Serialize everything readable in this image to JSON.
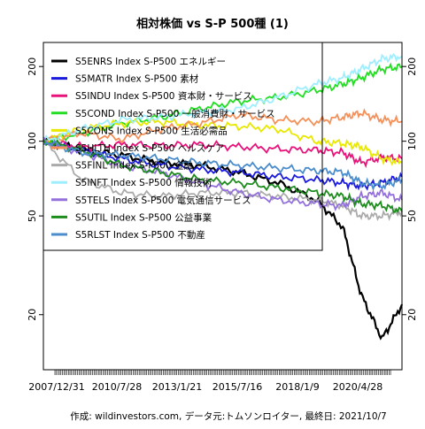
{
  "chart_data": {
    "type": "line",
    "title": "相対株価 vs S-P 500種 (1)",
    "footer": "作成: wildinvestors.com, データ元:トムソンロイター, 最終日: 2021/10/7",
    "x_tick_labels": [
      "2007/12/31",
      "2010/7/28",
      "2013/1/21",
      "2015/7/16",
      "2018/1/9",
      "2020/4/28"
    ],
    "x_range": [
      "2007-12-31",
      "2021-10-07"
    ],
    "y_scale": "log",
    "y_ticks": [
      20,
      50,
      100,
      200
    ],
    "y_range": [
      12,
      250
    ],
    "legend_position": "top-left",
    "x_dates": [
      "2007-12-31",
      "2009-06-30",
      "2010-12-31",
      "2012-06-30",
      "2013-12-31",
      "2015-06-30",
      "2016-12-31",
      "2018-06-30",
      "2019-06-30",
      "2020-03-15",
      "2021-01-01",
      "2021-10-07"
    ],
    "series": [
      {
        "name": "S5ENRS Index S-P500 エネルギー",
        "color": "#000000",
        "values": [
          100,
          92,
          88,
          82,
          80,
          75,
          68,
          58,
          45,
          24,
          16,
          22
        ]
      },
      {
        "name": "S5MATR Index S-P500 素材",
        "color": "#1a1adc",
        "values": [
          100,
          92,
          85,
          80,
          77,
          75,
          72,
          70,
          68,
          66,
          68,
          72
        ]
      },
      {
        "name": "S5INDU Index S-P500 資本財・サービス",
        "color": "#e8127a",
        "values": [
          100,
          95,
          97,
          96,
          97,
          95,
          93,
          92,
          90,
          82,
          86,
          85
        ]
      },
      {
        "name": "S5COND Index S-P500 一般消費財・サービス",
        "color": "#22dd22",
        "values": [
          100,
          108,
          118,
          125,
          135,
          145,
          150,
          160,
          170,
          180,
          195,
          200
        ]
      },
      {
        "name": "S5CONS Index S-P500 生活必需品",
        "color": "#e8e800",
        "values": [
          100,
          112,
          118,
          120,
          116,
          115,
          112,
          100,
          98,
          95,
          85,
          82
        ]
      },
      {
        "name": "S5HLTH Index S-P500 ヘルスケア",
        "color": "#f4915a",
        "values": [
          100,
          108,
          102,
          112,
          118,
          128,
          122,
          120,
          125,
          130,
          122,
          120
        ]
      },
      {
        "name": "S5FINL Index S-P500 金融",
        "color": "#aaaaaa",
        "values": [
          100,
          70,
          62,
          60,
          62,
          62,
          60,
          58,
          55,
          50,
          50,
          52
        ]
      },
      {
        "name": "S5INFT Index S-P500 情報技術",
        "color": "#9eeeff",
        "values": [
          100,
          112,
          122,
          125,
          130,
          135,
          150,
          170,
          180,
          195,
          215,
          220
        ]
      },
      {
        "name": "S5TELS Index S-P500 電気通信サービス",
        "color": "#9370db",
        "values": [
          100,
          90,
          80,
          75,
          68,
          62,
          58,
          56,
          55,
          60,
          62,
          58
        ]
      },
      {
        "name": "S5UTIL Index S-P500 公益事業",
        "color": "#1c8c1c",
        "values": [
          100,
          92,
          80,
          75,
          70,
          68,
          65,
          62,
          60,
          56,
          55,
          52
        ]
      },
      {
        "name": "S5RLST Index S-P500 不動産",
        "color": "#4a8ccc",
        "values": [
          100,
          90,
          88,
          85,
          82,
          80,
          78,
          76,
          75,
          68,
          66,
          70
        ]
      }
    ]
  }
}
